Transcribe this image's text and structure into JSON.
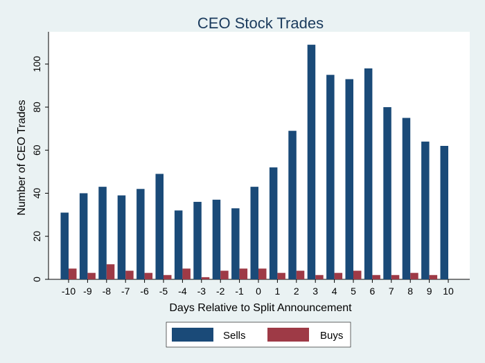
{
  "chart_data": {
    "type": "bar",
    "title": "CEO Stock Trades",
    "xlabel": "Days Relative to Split Announcement",
    "ylabel": "Number of CEO Trades",
    "categories": [
      "-10",
      "-9",
      "-8",
      "-7",
      "-6",
      "-5",
      "-4",
      "-3",
      "-2",
      "-1",
      "0",
      "1",
      "2",
      "3",
      "4",
      "5",
      "6",
      "7",
      "8",
      "9",
      "10"
    ],
    "series": [
      {
        "name": "Sells",
        "color": "#1a4a78",
        "values": [
          31,
          40,
          43,
          39,
          42,
          49,
          32,
          36,
          37,
          33,
          43,
          52,
          69,
          109,
          95,
          93,
          98,
          80,
          75,
          64,
          62
        ]
      },
      {
        "name": "Buys",
        "color": "#9e3a46",
        "values": [
          5,
          3,
          7,
          4,
          3,
          2,
          5,
          1,
          4,
          5,
          5,
          3,
          4,
          2,
          3,
          4,
          2,
          2,
          3,
          2,
          0
        ]
      }
    ],
    "ylim": [
      0,
      115
    ],
    "yticks": [
      0,
      20,
      40,
      60,
      80,
      100
    ],
    "grid": false,
    "legend_position": "bottom-center",
    "background_color": "#eaf2f3",
    "plot_background_color": "#ffffff"
  }
}
